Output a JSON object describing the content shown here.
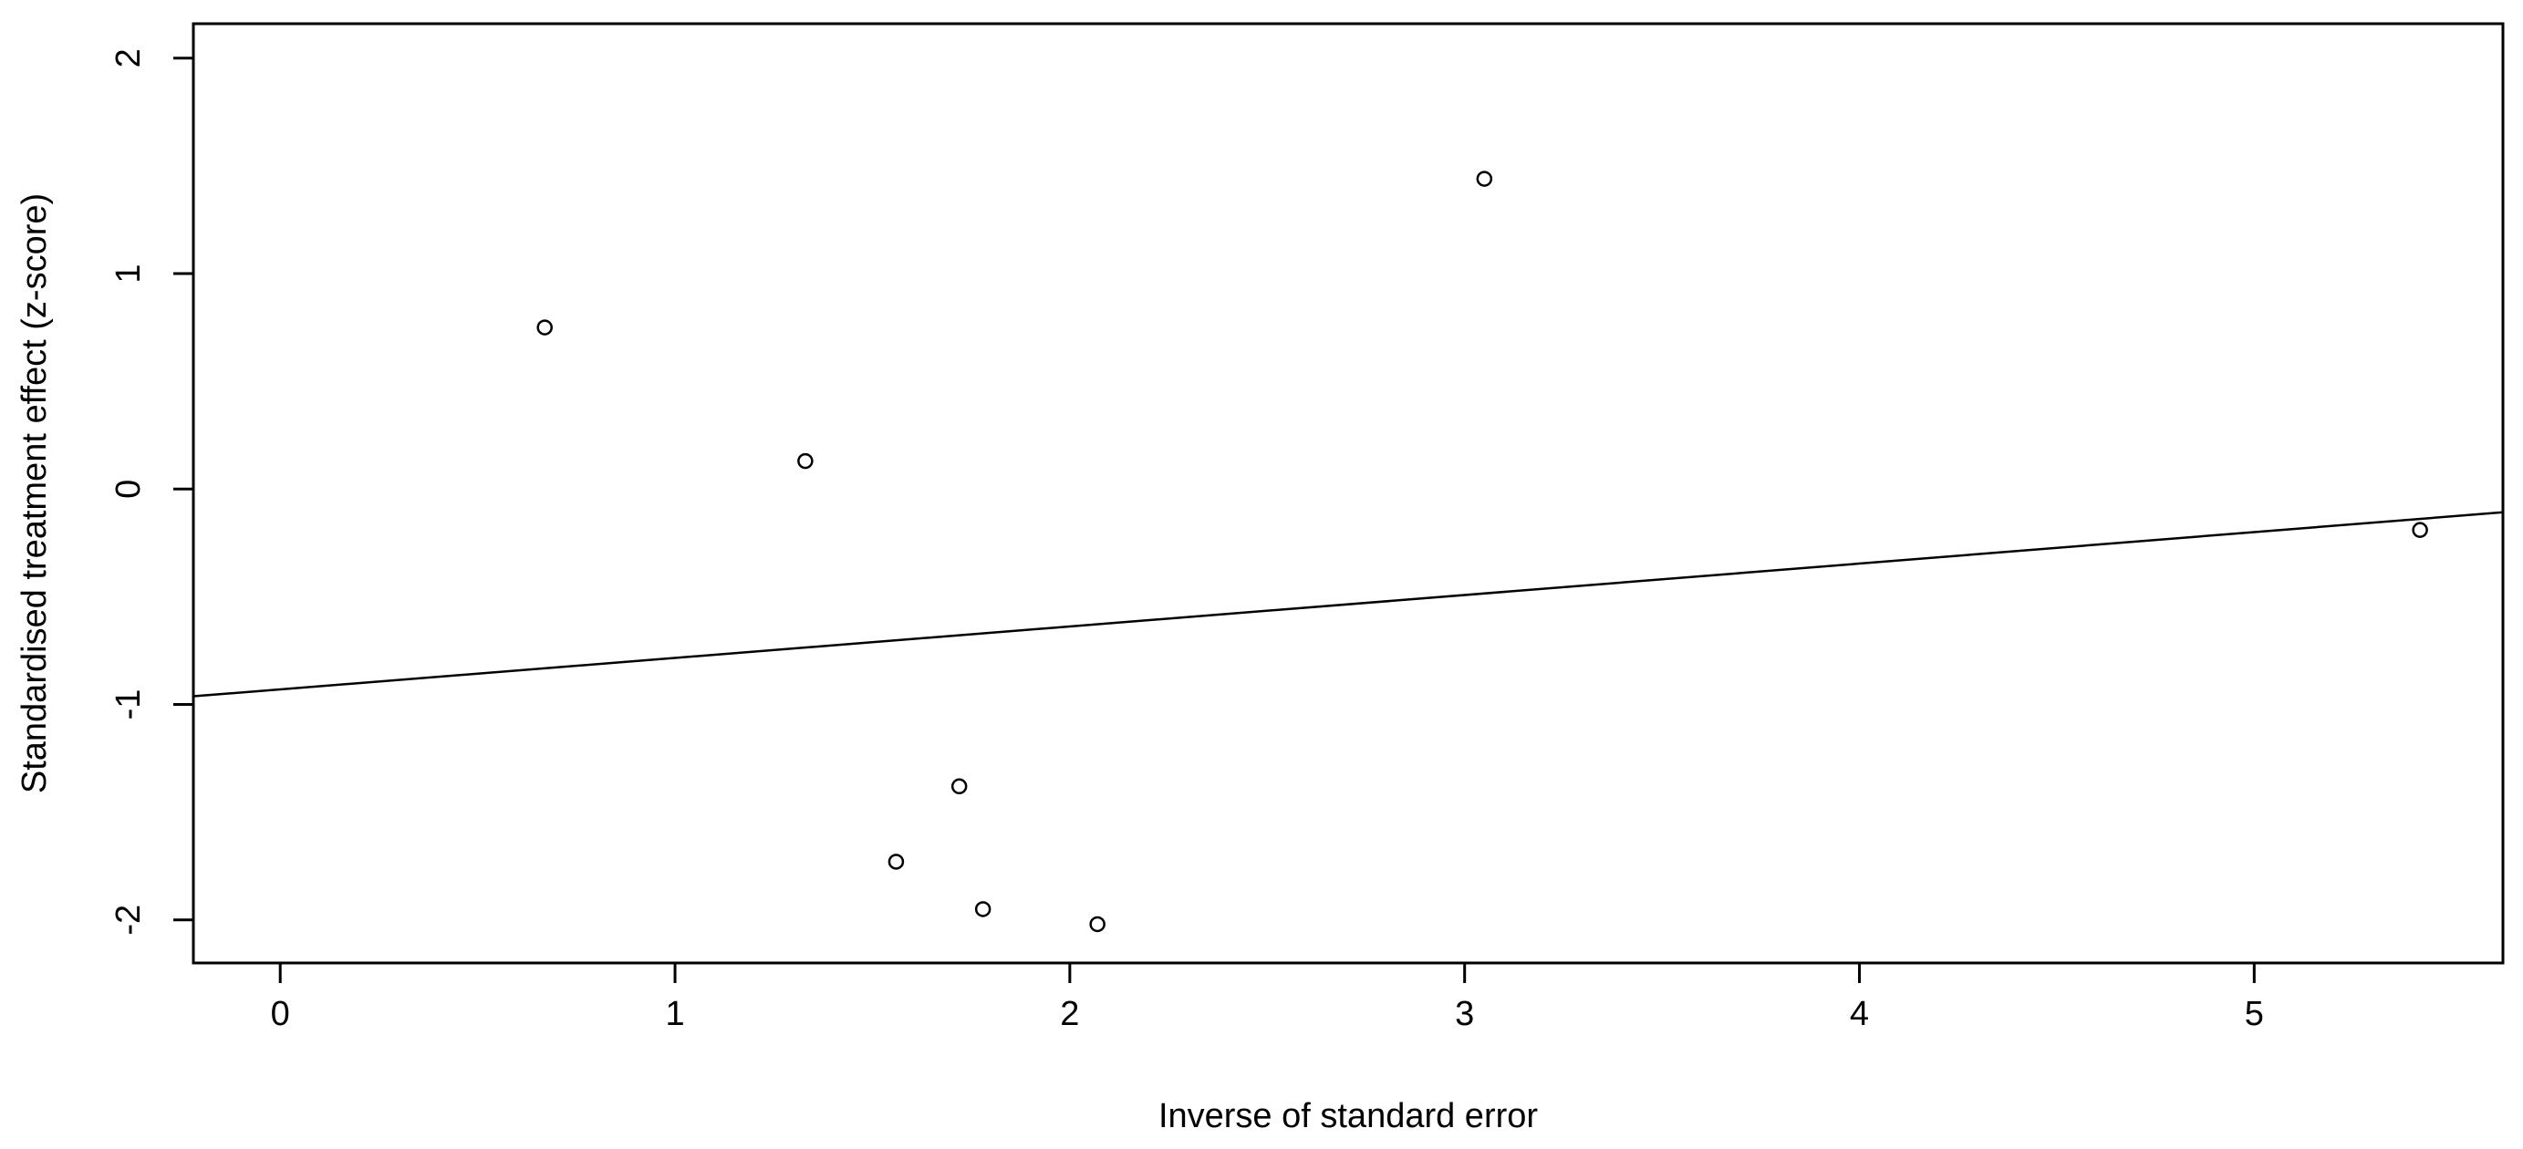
{
  "chart_data": {
    "type": "scatter",
    "title": "",
    "xlabel": "Inverse of standard error",
    "ylabel": "Standardised treatment effect (z-score)",
    "xlim": [
      -0.22,
      5.63
    ],
    "ylim": [
      -2.2,
      2.16
    ],
    "x_ticks": [
      0,
      1,
      2,
      3,
      4,
      5
    ],
    "y_ticks": [
      -2,
      -1,
      0,
      1,
      2
    ],
    "grid": false,
    "points": [
      {
        "x": 0.67,
        "y": 0.75
      },
      {
        "x": 1.33,
        "y": 0.13
      },
      {
        "x": 3.05,
        "y": 1.44
      },
      {
        "x": 5.42,
        "y": -0.19
      },
      {
        "x": 1.72,
        "y": -1.38
      },
      {
        "x": 1.56,
        "y": -1.73
      },
      {
        "x": 1.78,
        "y": -1.95
      },
      {
        "x": 2.07,
        "y": -2.02
      }
    ],
    "regression_line": {
      "intercept": -0.93,
      "slope": 0.146
    }
  }
}
